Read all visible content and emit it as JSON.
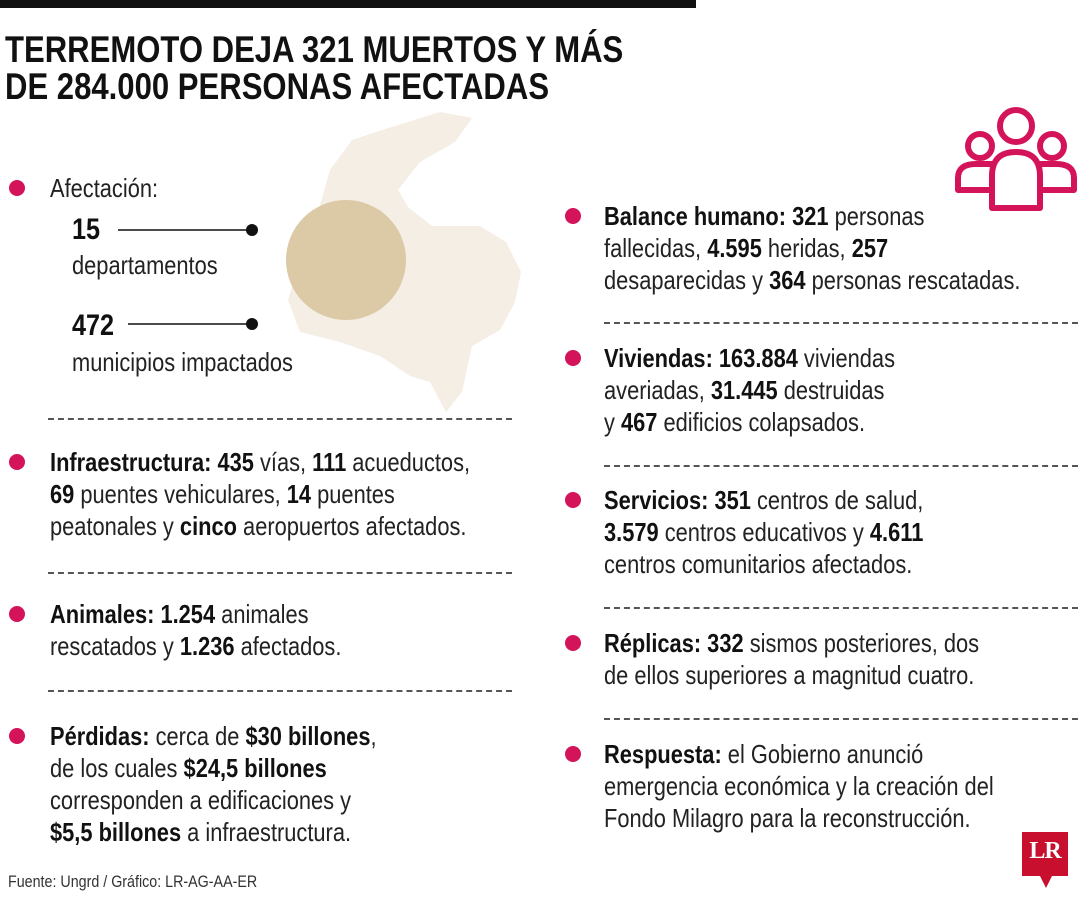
{
  "header": {
    "title_lines": [
      "TERREMOTO DEJA 321 MUERTOS Y MÁS",
      "DE 284.000 PERSONAS AFECTADAS"
    ]
  },
  "afectacion": {
    "label": "Afectación:",
    "stats": [
      {
        "value": "15",
        "label": "departamentos"
      },
      {
        "value": "472",
        "label": "municipios impactados"
      }
    ]
  },
  "items_left": [
    {
      "lines": [
        [
          {
            "text": "Infraestructura: 435",
            "bold": true
          },
          {
            "text": " vías, "
          },
          {
            "text": "111",
            "bold": true
          },
          {
            "text": " acueductos,"
          }
        ],
        [
          {
            "text": "69",
            "bold": true
          },
          {
            "text": " puentes vehiculares, "
          },
          {
            "text": "14",
            "bold": true
          },
          {
            "text": " puentes"
          }
        ],
        [
          {
            "text": "peatonales y "
          },
          {
            "text": "cinco",
            "bold": true
          },
          {
            "text": " aeropuertos afectados."
          }
        ]
      ]
    },
    {
      "lines": [
        [
          {
            "text": "Animales: 1.254",
            "bold": true
          },
          {
            "text": " animales"
          }
        ],
        [
          {
            "text": "rescatados y "
          },
          {
            "text": "1.236",
            "bold": true
          },
          {
            "text": " afectados."
          }
        ]
      ]
    },
    {
      "lines": [
        [
          {
            "text": "Pérdidas:",
            "bold": true
          },
          {
            "text": " cerca de "
          },
          {
            "text": "$30 billones",
            "bold": true
          },
          {
            "text": ","
          }
        ],
        [
          {
            "text": "de los cuales "
          },
          {
            "text": "$24,5 billones",
            "bold": true
          }
        ],
        [
          {
            "text": "corresponden a edificaciones y"
          }
        ],
        [
          {
            "text": "$5,5 billones",
            "bold": true
          },
          {
            "text": " a infraestructura."
          }
        ]
      ]
    }
  ],
  "items_right": [
    {
      "lines": [
        [
          {
            "text": "Balance humano: 321",
            "bold": true
          },
          {
            "text": " personas"
          }
        ],
        [
          {
            "text": "fallecidas, "
          },
          {
            "text": "4.595",
            "bold": true
          },
          {
            "text": " heridas, "
          },
          {
            "text": "257",
            "bold": true
          }
        ],
        [
          {
            "text": "desaparecidas y "
          },
          {
            "text": "364",
            "bold": true
          },
          {
            "text": " personas rescatadas."
          }
        ]
      ]
    },
    {
      "lines": [
        [
          {
            "text": "Viviendas: 163.884",
            "bold": true
          },
          {
            "text": " viviendas"
          }
        ],
        [
          {
            "text": "averiadas, "
          },
          {
            "text": "31.445",
            "bold": true
          },
          {
            "text": " destruidas"
          }
        ],
        [
          {
            "text": "y "
          },
          {
            "text": "467",
            "bold": true
          },
          {
            "text": " edificios colapsados."
          }
        ]
      ]
    },
    {
      "lines": [
        [
          {
            "text": "Servicios: 351",
            "bold": true
          },
          {
            "text": " centros de salud,"
          }
        ],
        [
          {
            "text": "3.579",
            "bold": true
          },
          {
            "text": " centros educativos y "
          },
          {
            "text": "4.611",
            "bold": true
          }
        ],
        [
          {
            "text": "centros comunitarios afectados."
          }
        ]
      ]
    },
    {
      "lines": [
        [
          {
            "text": "Réplicas: 332",
            "bold": true
          },
          {
            "text": " sismos posteriores, dos"
          }
        ],
        [
          {
            "text": "de ellos superiores a magnitud cuatro."
          }
        ]
      ]
    },
    {
      "lines": [
        [
          {
            "text": "Respuesta:",
            "bold": true
          },
          {
            "text": " el Gobierno anunció"
          }
        ],
        [
          {
            "text": "emergencia económica y la creación del"
          }
        ],
        [
          {
            "text": "Fondo Milagro para la reconstrucción."
          }
        ]
      ]
    }
  ],
  "source": "Fuente: Ungrd / Gráfico: LR-AG-AA-ER",
  "logo": "LR"
}
